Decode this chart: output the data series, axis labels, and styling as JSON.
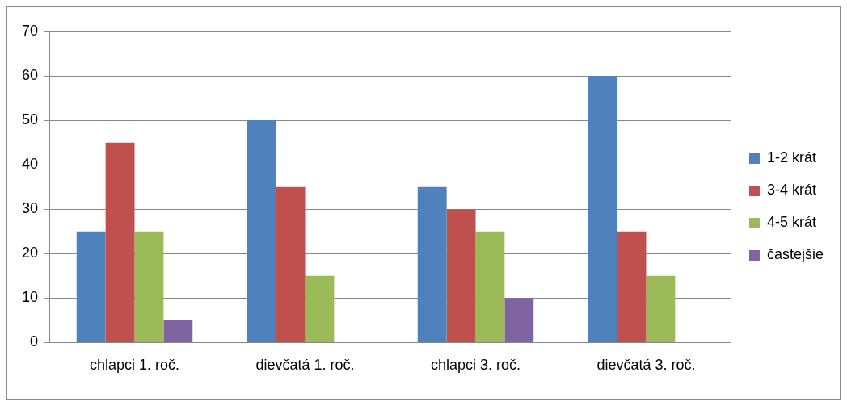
{
  "chart_data": {
    "type": "bar",
    "categories": [
      "chlapci 1. roč.",
      "dievčatá 1. roč.",
      "chlapci 3. roč.",
      "dievčatá 3. roč."
    ],
    "series": [
      {
        "name": "1-2 krát",
        "color": "#4f81bd",
        "values": [
          25,
          50,
          35,
          60
        ]
      },
      {
        "name": "3-4 krát",
        "color": "#c0504d",
        "values": [
          45,
          35,
          30,
          25
        ]
      },
      {
        "name": "4-5 krát",
        "color": "#9bbb59",
        "values": [
          25,
          15,
          25,
          15
        ]
      },
      {
        "name": "častejšie",
        "color": "#8064a2",
        "values": [
          5,
          null,
          10,
          null
        ]
      }
    ],
    "ylim": [
      0,
      70
    ],
    "yticks": [
      0,
      10,
      20,
      30,
      40,
      50,
      60,
      70
    ],
    "grid": "y",
    "legend": "right"
  }
}
